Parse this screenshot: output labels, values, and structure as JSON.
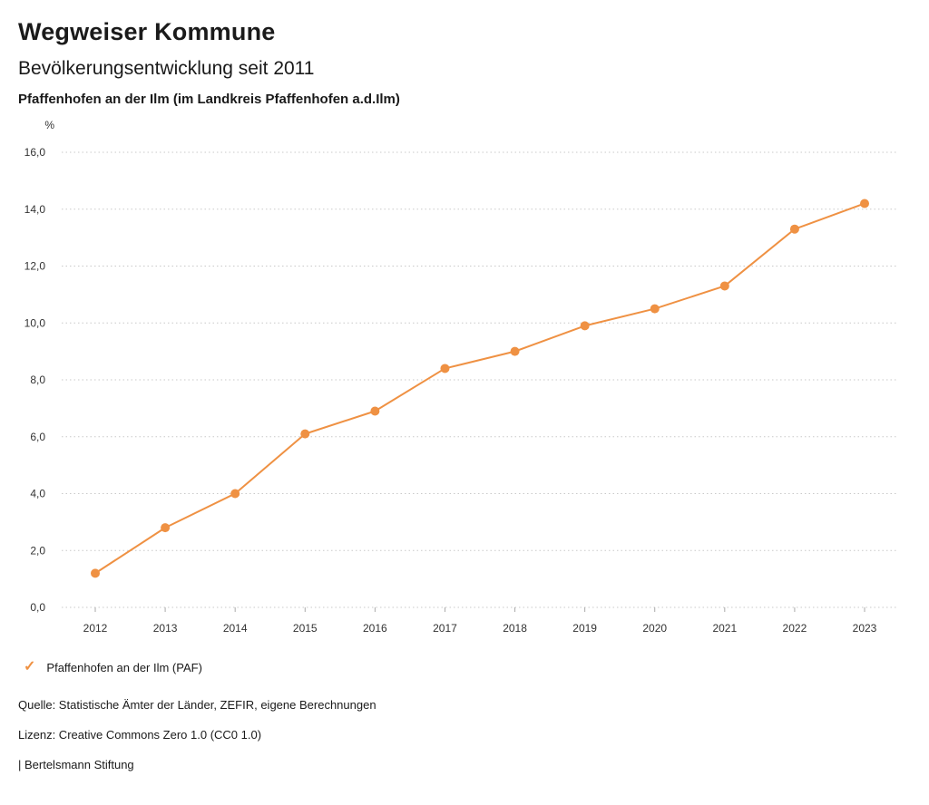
{
  "header": {
    "brand": "Wegweiser Kommune"
  },
  "chart_data": {
    "type": "line",
    "title": "Bevölkerungsentwicklung seit 2011",
    "subtitle": "Pfaffenhofen an der Ilm (im Landkreis Pfaffenhofen a.d.Ilm)",
    "xlabel": "",
    "ylabel": "",
    "y_unit_label": "%",
    "x": [
      "2012",
      "2013",
      "2014",
      "2015",
      "2016",
      "2017",
      "2018",
      "2019",
      "2020",
      "2021",
      "2022",
      "2023"
    ],
    "series": [
      {
        "name": "Pfaffenhofen an der Ilm (PAF)",
        "values": [
          1.2,
          2.8,
          4.0,
          6.1,
          6.9,
          8.4,
          9.0,
          9.9,
          10.5,
          11.3,
          13.3,
          14.2
        ],
        "color": "#ef9143"
      }
    ],
    "ylim": [
      0,
      16
    ],
    "y_step": 2,
    "y_tick_labels": [
      "0,0",
      "2,0",
      "4,0",
      "6,0",
      "8,0",
      "10,0",
      "12,0",
      "14,0",
      "16,0"
    ],
    "grid": true,
    "grid_style": "dotted",
    "legend_position": "bottom"
  },
  "legend": {
    "marker_icon": "check-icon"
  },
  "footer": {
    "source": "Quelle: Statistische Ämter der Länder, ZEFIR, eigene Berechnungen",
    "license": "Lizenz: Creative Commons Zero 1.0 (CC0 1.0)",
    "attribution": "| Bertelsmann Stiftung"
  }
}
